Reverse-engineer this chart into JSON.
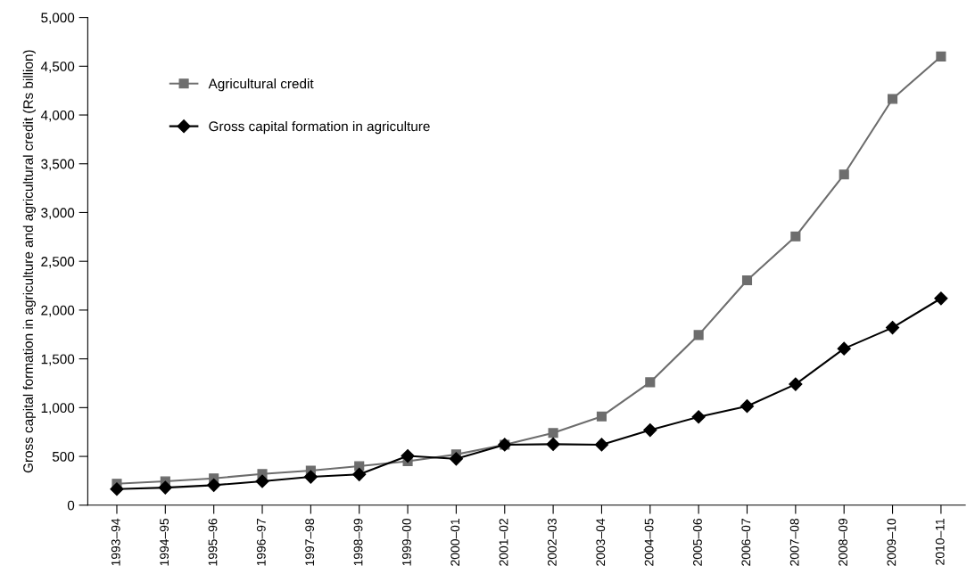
{
  "chart_data": {
    "type": "line",
    "ylabel": "Gross capital formation in agriculture and agricultural credit (Rs billion)",
    "categories": [
      "1993–94",
      "1994–95",
      "1995–96",
      "1996–97",
      "1997–98",
      "1998–99",
      "1999–00",
      "2000–01",
      "2001–02",
      "2002–03",
      "2003–04",
      "2004–05",
      "2005–06",
      "2006–07",
      "2007–08",
      "2008–09",
      "2009–10",
      "2010–11"
    ],
    "series": [
      {
        "name": "Agricultural credit",
        "color": "#6d6d6d",
        "marker": "square",
        "values": [
          220,
          245,
          275,
          320,
          355,
          400,
          450,
          520,
          620,
          740,
          910,
          1260,
          1745,
          2305,
          2755,
          3390,
          4165,
          4600
        ]
      },
      {
        "name": "Gross capital formation in agriculture",
        "color": "#000000",
        "marker": "diamond",
        "values": [
          165,
          180,
          205,
          245,
          290,
          315,
          505,
          475,
          620,
          625,
          620,
          770,
          905,
          1015,
          1240,
          1605,
          1820,
          2120
        ]
      }
    ],
    "ylim": [
      0,
      5000
    ],
    "yticks": [
      {
        "value": 0,
        "label": "0"
      },
      {
        "value": 500,
        "label": "500"
      },
      {
        "value": 1000,
        "label": "1,000"
      },
      {
        "value": 1500,
        "label": "1,500"
      },
      {
        "value": 2000,
        "label": "2,000"
      },
      {
        "value": 2500,
        "label": "2,500"
      },
      {
        "value": 3000,
        "label": "3,000"
      },
      {
        "value": 3500,
        "label": "3,500"
      },
      {
        "value": 4000,
        "label": "4,000"
      },
      {
        "value": 4500,
        "label": "4,500"
      },
      {
        "value": 5000,
        "label": "5,000"
      }
    ],
    "grid": false,
    "legend": "top left"
  }
}
